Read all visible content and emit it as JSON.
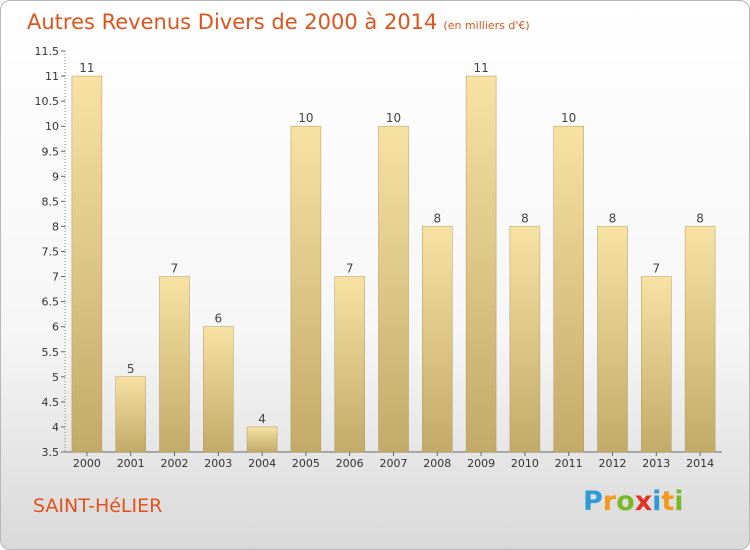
{
  "header": {
    "title": "Autres Revenus Divers de 2000 à 2014",
    "subtitle": "(en milliers d'€)"
  },
  "footer": {
    "commune": "SAINT-HéLIER",
    "logo_letters": [
      {
        "char": "P",
        "color": "#2f9ad8"
      },
      {
        "char": "r",
        "color": "#f39a1e"
      },
      {
        "char": "o",
        "color": "#79b929"
      },
      {
        "char": "x",
        "color": "#e43223"
      },
      {
        "char": "i",
        "color": "#2f9ad8"
      },
      {
        "char": "t",
        "color": "#f39a1e"
      },
      {
        "char": "i",
        "color": "#79b929"
      }
    ]
  },
  "colors": {
    "accent": "#e2531c",
    "bar_light": "#f7e2a4",
    "bar_dark": "#c2aa68",
    "bar_edge": "#b19a58"
  },
  "chart_data": {
    "type": "bar",
    "title": "Autres Revenus Divers de 2000 à 2014",
    "subtitle": "(en milliers d'€)",
    "categories": [
      "2000",
      "2001",
      "2002",
      "2003",
      "2004",
      "2005",
      "2006",
      "2007",
      "2008",
      "2009",
      "2010",
      "2011",
      "2012",
      "2013",
      "2014"
    ],
    "values": [
      11,
      5,
      7,
      6,
      4,
      10,
      7,
      10,
      8,
      11,
      8,
      10,
      8,
      7,
      8
    ],
    "data_labels": [
      "11",
      "5",
      "7",
      "6",
      "4",
      "10",
      "7",
      "10",
      "8",
      "11",
      "8",
      "10",
      "8",
      "7",
      "8"
    ],
    "ylim": [
      3.5,
      11.5
    ],
    "yticks": [
      3.5,
      4,
      4.5,
      5,
      5.5,
      6,
      6.5,
      7,
      7.5,
      8,
      8.5,
      9,
      9.5,
      10,
      10.5,
      11,
      11.5
    ],
    "ytick_labels": [
      "3.5",
      "4",
      "4.5",
      "5",
      "5.5",
      "6",
      "6.5",
      "7",
      "7.5",
      "8",
      "8.5",
      "9",
      "9.5",
      "10",
      "10.5",
      "11",
      "11.5"
    ],
    "grid": false,
    "xlabel": "",
    "ylabel": ""
  }
}
